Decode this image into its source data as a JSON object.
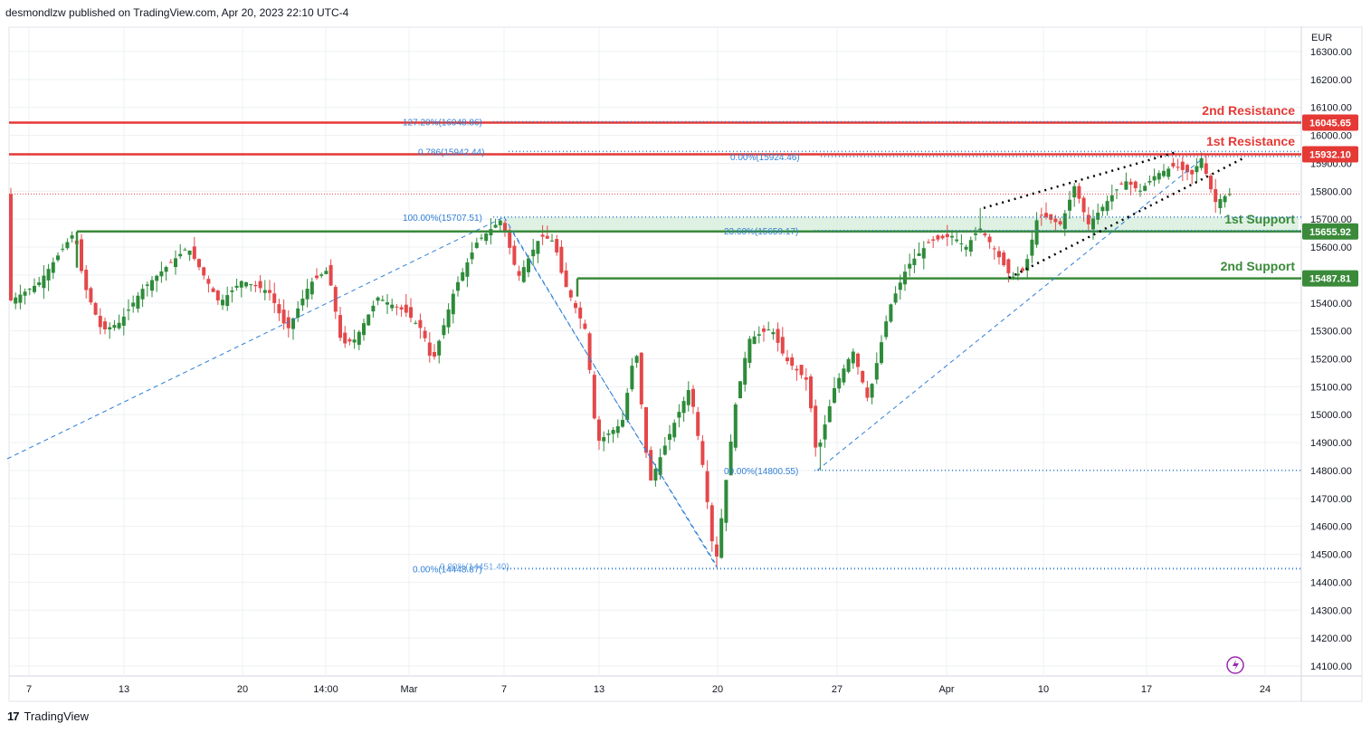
{
  "header": {
    "published": "desmondlzw published on TradingView.com, Apr 20, 2023 22:10 UTC-4"
  },
  "footer": {
    "brand": "TradingView",
    "logo_glyph": "17"
  },
  "colors": {
    "up": "#2e8b3a",
    "down": "#e4484a",
    "support": "#3a8a3a",
    "resistance": "#e53935",
    "fib": "#2f7fd6",
    "grid": "#eef0f3",
    "axis_text": "#131722",
    "zone": "#dcefe0",
    "lightning": "#9c27b0"
  },
  "chart_data": {
    "type": "candlestick",
    "currency_label": "EUR",
    "ylim": [
      14050,
      16400
    ],
    "y_ticks": [
      "14100.00",
      "14200.00",
      "14300.00",
      "14400.00",
      "14500.00",
      "14600.00",
      "14700.00",
      "14800.00",
      "14900.00",
      "15000.00",
      "15100.00",
      "15200.00",
      "15300.00",
      "15400.00",
      "15500.00",
      "15600.00",
      "15700.00",
      "15800.00",
      "15900.00",
      "16000.00",
      "16100.00",
      "16200.00",
      "16300.00"
    ],
    "x_ticks": [
      "7",
      "13",
      "20",
      "14:00",
      "Mar",
      "7",
      "13",
      "20",
      "27",
      "Apr",
      "10",
      "17",
      "24"
    ],
    "levels": [
      {
        "name": "2nd Resistance",
        "value": 16045.65,
        "label": "16045.65",
        "kind": "resistance"
      },
      {
        "name": "1st Resistance",
        "value": 15932.1,
        "label": "15932.10",
        "kind": "resistance"
      },
      {
        "name": "1st Support",
        "value": 15655.92,
        "label": "15655.92",
        "kind": "support"
      },
      {
        "name": "2nd Support",
        "value": 15487.81,
        "label": "15487.81",
        "kind": "support"
      }
    ],
    "fib_labels": [
      "127.20%(16048.86)",
      "0.786(15942.44)",
      "0.00%(15924.46)",
      "100.00%(15707.51)",
      "23.60%(15659.17)",
      "00.00%(14800.55)",
      "0.00%(14448.87)"
    ],
    "fib_ghost_label": "0.00%(14451.40)",
    "last_price": 15790,
    "candles": []
  }
}
